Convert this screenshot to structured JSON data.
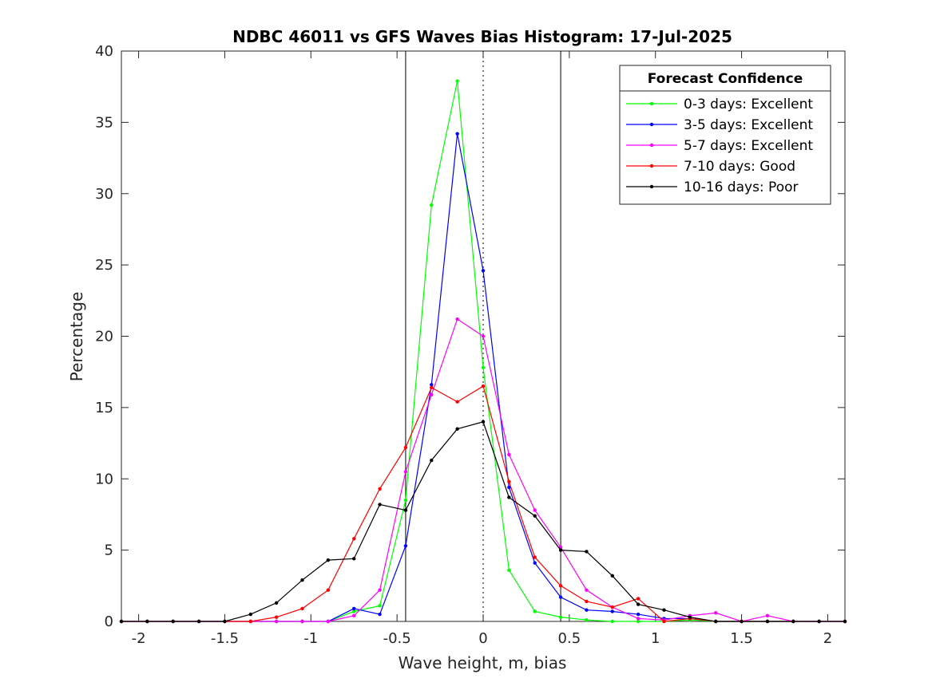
{
  "chart_data": {
    "type": "line",
    "title": "NDBC 46011 vs GFS Waves Bias Histogram: 17-Jul-2025",
    "xlabel": "Wave height, m, bias",
    "ylabel": "Percentage",
    "xlim": [
      -2.1,
      2.1
    ],
    "ylim": [
      0,
      40
    ],
    "xticks": [
      -2,
      -1.5,
      -1,
      -0.5,
      0,
      0.5,
      1,
      1.5,
      2
    ],
    "xtick_labels": [
      "-2",
      "-1.5",
      "-1",
      "-0.5",
      "0",
      "0.5",
      "1",
      "1.5",
      "2"
    ],
    "yticks": [
      0,
      5,
      10,
      15,
      20,
      25,
      30,
      35,
      40
    ],
    "ytick_labels": [
      "0",
      "5",
      "10",
      "15",
      "20",
      "25",
      "30",
      "35",
      "40"
    ],
    "grid": false,
    "vertical_lines": [
      {
        "x": -0.45,
        "style": "solid"
      },
      {
        "x": 0,
        "style": "dotted"
      },
      {
        "x": 0.45,
        "style": "solid"
      }
    ],
    "legend": {
      "title": "Forecast Confidence",
      "position": "top-right"
    },
    "x": [
      -2.1,
      -1.95,
      -1.8,
      -1.65,
      -1.5,
      -1.35,
      -1.2,
      -1.05,
      -0.9,
      -0.75,
      -0.6,
      -0.45,
      -0.3,
      -0.15,
      0,
      0.15,
      0.3,
      0.45,
      0.6,
      0.75,
      0.9,
      1.05,
      1.2,
      1.35,
      1.5,
      1.65,
      1.8,
      1.95,
      2.1
    ],
    "series": [
      {
        "name": "0-3 days: Excellent",
        "color": "#00ff00",
        "values": [
          0,
          0,
          0,
          0,
          0,
          0,
          0,
          0,
          0,
          0.7,
          1.1,
          8.5,
          29.2,
          37.9,
          17.8,
          3.6,
          0.7,
          0.3,
          0.1,
          0,
          0,
          0,
          0.1,
          0,
          0,
          0,
          0,
          0,
          0
        ]
      },
      {
        "name": "3-5 days: Excellent",
        "color": "#0000ff",
        "values": [
          0,
          0,
          0,
          0,
          0,
          0,
          0,
          0,
          0,
          0.9,
          0.5,
          5.3,
          16.6,
          34.2,
          24.6,
          9.4,
          4.1,
          1.7,
          0.8,
          0.7,
          0.5,
          0.2,
          0.2,
          0,
          0,
          0,
          0,
          0,
          0
        ]
      },
      {
        "name": "5-7 days: Excellent",
        "color": "#ff00ff",
        "values": [
          0,
          0,
          0,
          0,
          0,
          0,
          0,
          0,
          0,
          0.4,
          2.2,
          10.5,
          15.9,
          21.2,
          20.0,
          11.7,
          7.8,
          5.2,
          2.2,
          1.0,
          0.2,
          0.1,
          0.4,
          0.6,
          0,
          0.4,
          0,
          0,
          0
        ]
      },
      {
        "name": "7-10 days: Good",
        "color": "#ff0000",
        "values": [
          0,
          0,
          0,
          0,
          0,
          0,
          0.3,
          0.9,
          2.2,
          5.8,
          9.3,
          12.2,
          16.4,
          15.4,
          16.5,
          9.8,
          4.5,
          2.5,
          1.4,
          1.0,
          1.6,
          0,
          0.2,
          0,
          0,
          0,
          0,
          0,
          0
        ]
      },
      {
        "name": "10-16 days: Poor",
        "color": "#000000",
        "values": [
          0,
          0,
          0,
          0,
          0,
          0.5,
          1.3,
          2.9,
          4.3,
          4.4,
          8.2,
          7.8,
          11.3,
          13.5,
          14.0,
          8.7,
          7.4,
          5.0,
          4.9,
          3.2,
          1.2,
          0.8,
          0.3,
          0,
          0,
          0,
          0,
          0,
          0
        ]
      }
    ]
  }
}
